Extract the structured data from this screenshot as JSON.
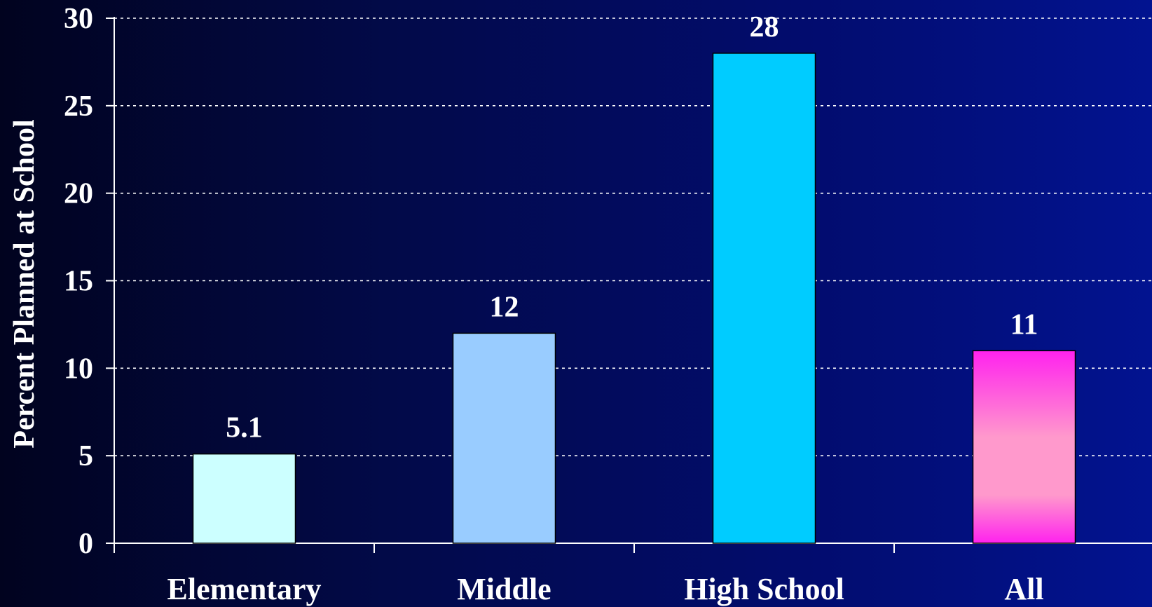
{
  "chart_data": {
    "type": "bar",
    "title": "",
    "xlabel": "",
    "ylabel": "Percent Planned at School",
    "categories": [
      "Elementary",
      "Middle",
      "High School",
      "All"
    ],
    "values": [
      5.1,
      12,
      28,
      11
    ],
    "data_labels": [
      "5.1",
      "12",
      "28",
      "11"
    ],
    "ylim": [
      0,
      30
    ],
    "yticks": [
      0,
      5,
      10,
      15,
      20,
      25,
      30
    ],
    "ytick_labels": [
      "0",
      "5",
      "10",
      "15",
      "20",
      "25",
      "30"
    ],
    "grid": true,
    "grid_style": "dotted",
    "legend": "none",
    "bar_colors": [
      "#ccffff",
      "#99ccff",
      "#00ccff",
      "#ff44dd"
    ],
    "background_color": "#020c6e",
    "text_color": "#ffffff"
  }
}
